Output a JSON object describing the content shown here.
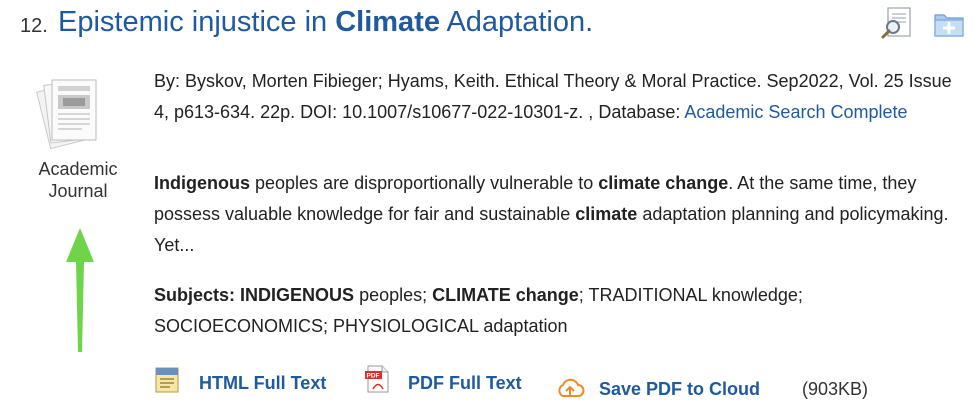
{
  "result": {
    "number": "12.",
    "title_parts": [
      "Epistemic injustice in ",
      "Climate",
      " Adaptation."
    ],
    "publication_type": [
      "Academic",
      "Journal"
    ],
    "meta_text": "By: Byskov, Morten Fibieger; Hyams, Keith. Ethical Theory & Moral Practice. Sep2022, Vol. 25 Issue 4, p613-634. 22p. DOI: 10.1007/s10677-022-10301-z. , Database: ",
    "database": "Academic Search Complete",
    "abstract": {
      "b1": "Indigenous",
      "t1": " peoples are disproportionally vulnerable to ",
      "b2": "climate change",
      "t2": ". At the same time, they possess valuable knowledge for fair and sustainable ",
      "b3": "climate",
      "t3": " adaptation planning and policymaking. Yet..."
    },
    "subjects": {
      "label": "Subjects:",
      "b1": "INDIGENOUS",
      "t1": " peoples; ",
      "b2": "CLIMATE change",
      "t2": "; TRADITIONAL knowledge; SOCIOECONOMICS; PHYSIOLOGICAL adaptation"
    },
    "links": {
      "html": "HTML Full Text",
      "pdf": "PDF Full Text",
      "cloud": "Save PDF to Cloud",
      "size": "(903KB)"
    }
  },
  "colors": {
    "link": "#1f5aa0",
    "annotation_arrow": "#6fd44a",
    "pdf_red": "#d9302b",
    "cloud_orange": "#f08a24"
  },
  "icons": [
    "preview-magnifier-icon",
    "add-to-folder-icon",
    "academic-journal-icon",
    "html-full-text-icon",
    "pdf-icon",
    "cloud-upload-icon"
  ]
}
